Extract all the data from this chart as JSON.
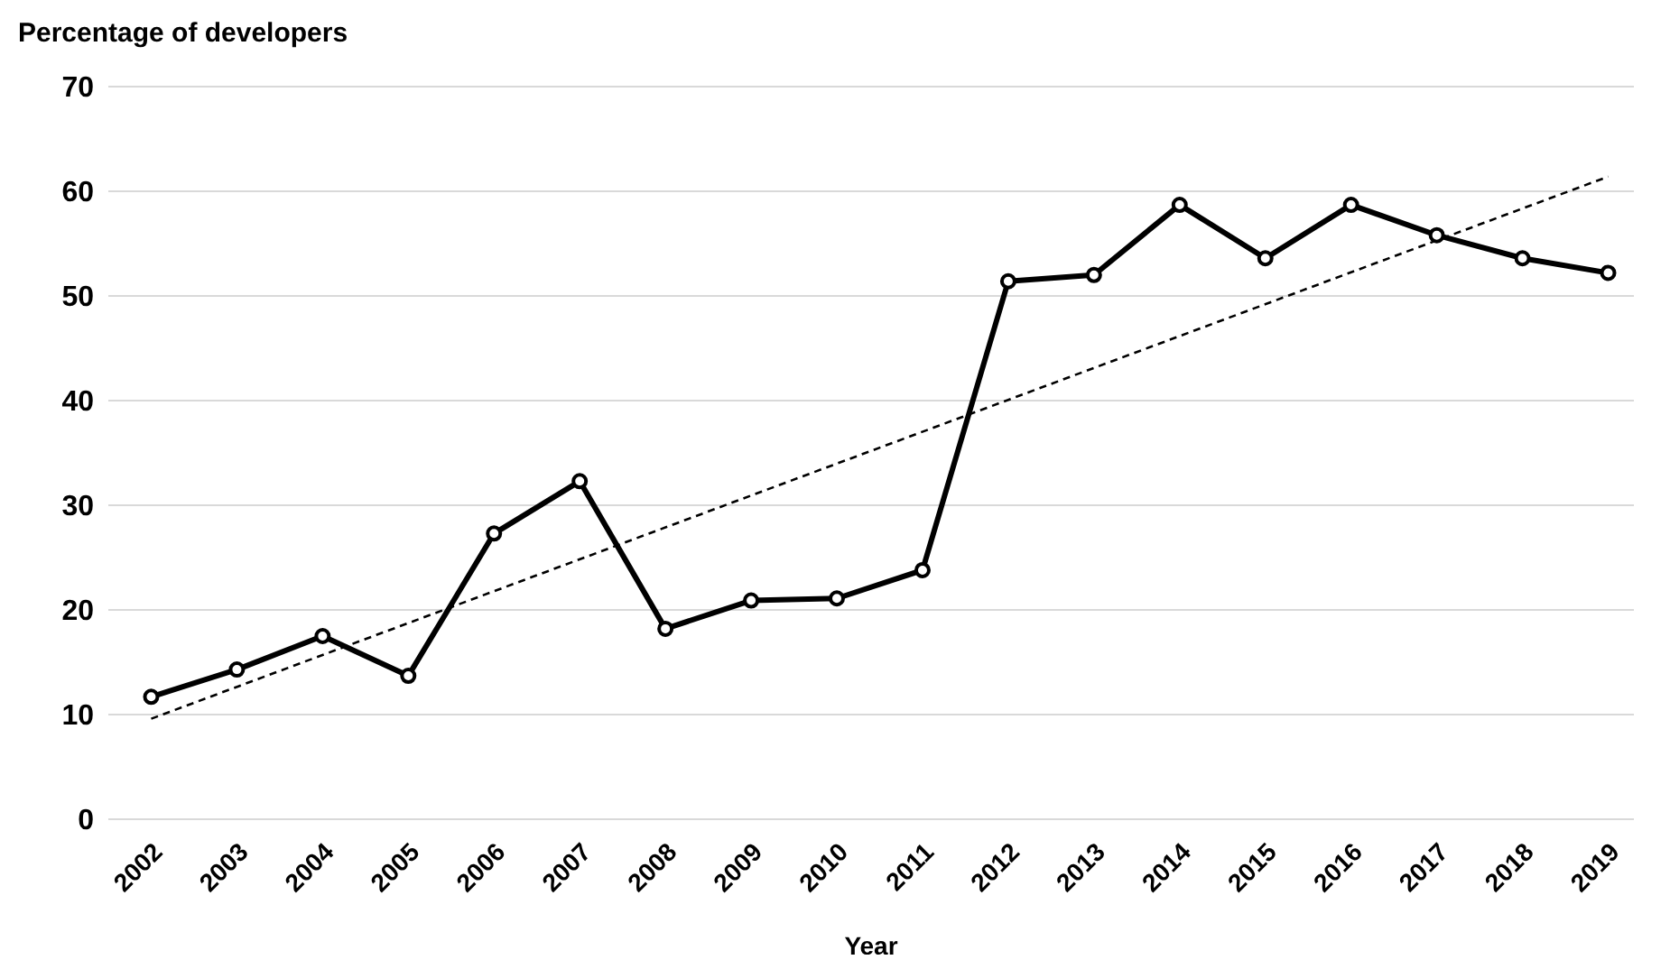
{
  "chart_data": {
    "type": "line",
    "ylabel": "Percentage of developers",
    "xlabel": "Year",
    "x": [
      2002,
      2003,
      2004,
      2005,
      2006,
      2007,
      2008,
      2009,
      2010,
      2011,
      2012,
      2013,
      2014,
      2015,
      2016,
      2017,
      2018,
      2019
    ],
    "xlim": [
      2001.5,
      2019.3
    ],
    "xticks": [
      2002,
      2003,
      2004,
      2005,
      2006,
      2007,
      2008,
      2009,
      2010,
      2011,
      2012,
      2013,
      2014,
      2015,
      2016,
      2017,
      2018,
      2019
    ],
    "ylim": [
      0,
      70
    ],
    "yticks": [
      0,
      10,
      20,
      30,
      40,
      50,
      60,
      70
    ],
    "grid": "y",
    "series": [
      {
        "color": "#000000",
        "marker": "circle",
        "line_style": "solid",
        "values": [
          11.7,
          14.3,
          17.5,
          13.7,
          27.3,
          32.3,
          18.2,
          20.9,
          21.1,
          23.8,
          51.4,
          52.0,
          58.7,
          53.6,
          58.7,
          55.8,
          53.6,
          52.2
        ]
      },
      {
        "type": "line",
        "color": "#000000",
        "marker": "none",
        "line_style": "dashed",
        "x": [
          2002,
          2019
        ],
        "values": [
          9.6,
          61.4
        ]
      }
    ]
  }
}
